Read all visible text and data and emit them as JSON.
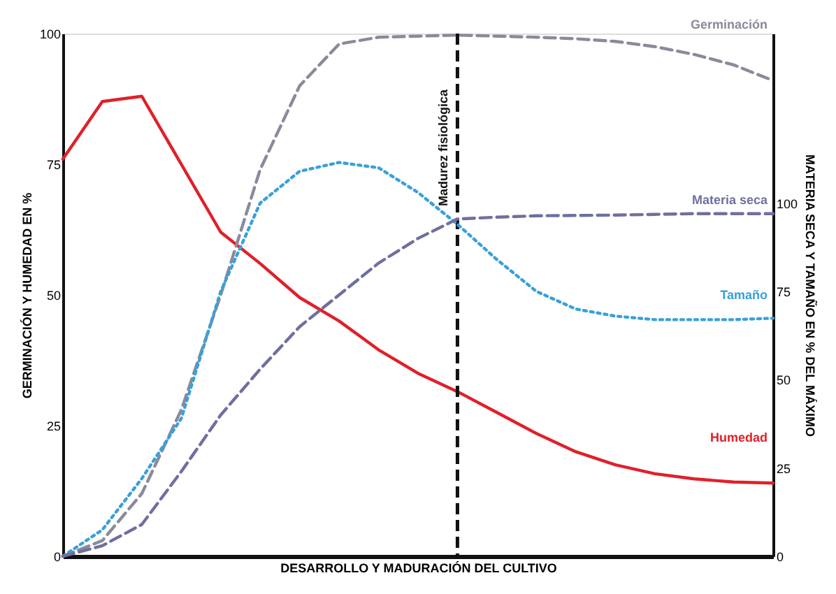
{
  "chart_data": {
    "type": "line",
    "xlabel": "DESARROLLO Y MADURACIÓN DEL CULTIVO",
    "ylabel": "GERMINACIÓN Y HUMEDAD EN %",
    "y2label": "MATERIA SECA Y TAMAÑO EN % DEL MÁXIMO",
    "categories": [
      null,
      null,
      null,
      null,
      null,
      null,
      null,
      null,
      null,
      null,
      null,
      null,
      null,
      null,
      null,
      null,
      null,
      null,
      null
    ],
    "ylim": [
      0,
      100
    ],
    "yticks": [
      0,
      25,
      50,
      75,
      100
    ],
    "y2lim": [
      0,
      148
    ],
    "y2ticks": [
      0,
      25,
      50,
      75,
      100
    ],
    "grid": false,
    "tick_labels": "y",
    "series": [
      {
        "name": "Humedad",
        "color": "#e0202a",
        "line_style": "solid",
        "values": [
          76,
          87,
          88,
          75,
          62,
          56,
          49.5,
          45,
          39.5,
          35,
          31.5,
          27.5,
          23.5,
          20,
          17.5,
          15.8,
          14.8,
          14.2,
          14
        ]
      },
      {
        "name": "Germinación",
        "color": "#8a8a9a",
        "line_style": "dashed",
        "values": [
          0,
          3,
          12,
          28,
          50,
          74,
          90,
          98,
          99.3,
          99.5,
          99.7,
          99.5,
          99.3,
          99,
          98.5,
          97.5,
          96,
          94,
          91
        ]
      },
      {
        "name": "Tamaño",
        "color": "#3aa0d8",
        "line_style": "dotted",
        "axis": "y2",
        "values": [
          0,
          7.5,
          22,
          39,
          75,
          100,
          109,
          111.5,
          110,
          103,
          94,
          84,
          75,
          70,
          68,
          67,
          67,
          67,
          67.4
        ]
      },
      {
        "name": "Materia seca",
        "color": "#6f6fa0",
        "line_style": "dashed",
        "axis": "y2",
        "values": [
          0,
          3,
          9,
          24,
          40,
          53,
          65,
          74,
          83,
          90,
          95.5,
          96,
          96.4,
          96.5,
          96.6,
          96.8,
          97,
          97,
          97
        ]
      }
    ],
    "annotations": [
      "Madurez fisiológica"
    ]
  }
}
